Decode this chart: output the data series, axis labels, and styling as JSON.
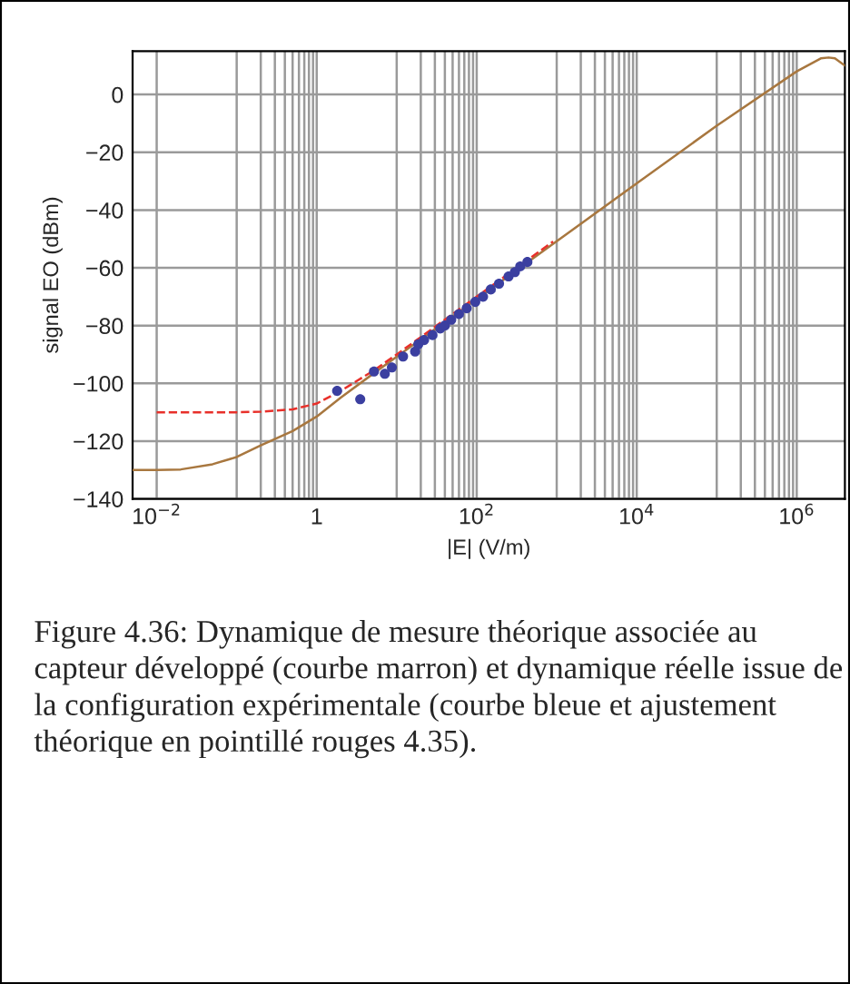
{
  "chart_data": {
    "type": "line",
    "xlabel": "|E| (V/m)",
    "ylabel": "signal EO (dBm)",
    "log": "x",
    "grid": true,
    "legend": false,
    "xlim": [
      0.005,
      4000000
    ],
    "ylim": [
      -140,
      15
    ],
    "xticks": [
      {
        "value": 0.01,
        "label": "10$^{−2}$"
      },
      {
        "value": 0.1,
        "label": null
      },
      1,
      {
        "value": 10,
        "label": null
      },
      {
        "value": 100,
        "label": "10$^{2}$"
      },
      {
        "value": 1000,
        "label": null
      },
      {
        "value": 10000,
        "label": "10$^{4}$"
      },
      {
        "value": 100000,
        "label": null
      },
      {
        "value": 1000000,
        "label": "10$^{6}$"
      },
      {
        "value": 0.2,
        "label": null
      },
      {
        "value": 0.3,
        "label": null
      },
      {
        "value": 0.4,
        "label": null
      },
      {
        "value": 0.5,
        "label": null
      },
      {
        "value": 0.6,
        "label": null
      },
      {
        "value": 0.7,
        "label": null
      },
      {
        "value": 0.8,
        "label": null
      },
      {
        "value": 0.9,
        "label": null
      },
      {
        "value": 20,
        "label": null
      },
      {
        "value": 30,
        "label": null
      },
      {
        "value": 40,
        "label": null
      },
      {
        "value": 50,
        "label": null
      },
      {
        "value": 60,
        "label": null
      },
      {
        "value": 70,
        "label": null
      },
      {
        "value": 80,
        "label": null
      },
      {
        "value": 90,
        "label": null
      },
      {
        "value": 2000,
        "label": null
      },
      {
        "value": 3000,
        "label": null
      },
      {
        "value": 4000,
        "label": null
      },
      {
        "value": 5000,
        "label": null
      },
      {
        "value": 6000,
        "label": null
      },
      {
        "value": 7000,
        "label": null
      },
      {
        "value": 8000,
        "label": null
      },
      {
        "value": 9000,
        "label": null
      },
      {
        "value": 200000,
        "label": null
      },
      {
        "value": 300000,
        "label": null
      },
      {
        "value": 400000,
        "label": null
      },
      {
        "value": 500000,
        "label": null
      },
      {
        "value": 600000,
        "label": null
      },
      {
        "value": 700000,
        "label": null
      },
      {
        "value": 800000,
        "label": null
      },
      {
        "value": 900000,
        "label": null
      }
    ],
    "yticks": [
      -140,
      -120,
      -100,
      -80,
      -60,
      -40,
      -20,
      0
    ],
    "series": [
      {
        "color": "#a8773f",
        "line_style": "solid",
        "marker": "none",
        "x": [
          0.005,
          0.01,
          0.02,
          0.05,
          0.1,
          0.2,
          0.5,
          1,
          2,
          5,
          10,
          100,
          1000,
          10000,
          100000,
          1000000,
          2000000,
          2500000,
          3000000,
          4000000
        ],
        "values": [
          -130,
          -130,
          -129.8,
          -128,
          -125.5,
          -121.5,
          -116.5,
          -111.5,
          -104.9,
          -96.8,
          -90.8,
          -70.8,
          -50.8,
          -30.8,
          -10.8,
          8,
          12.5,
          12.8,
          12.5,
          10
        ]
      },
      {
        "type": "line",
        "color": "#e8302a",
        "line_style": "dashed",
        "marker": "none",
        "x": [
          0.01,
          0.05,
          0.1,
          0.2,
          0.5,
          1,
          2,
          5,
          10,
          100,
          900
        ],
        "values": [
          -110,
          -110,
          -110,
          -109.8,
          -109,
          -107,
          -102.6,
          -95.8,
          -90,
          -70,
          -50.9
        ]
      },
      {
        "type": "scatter",
        "color": "#3b3fa0",
        "marker": "circle",
        "x": [
          1.8,
          3.5,
          5.2,
          7.1,
          8.7,
          12,
          17,
          18.6,
          22,
          28,
          35,
          40,
          48,
          60,
          75,
          96,
          120,
          150,
          190,
          250,
          300,
          350,
          430
        ],
        "values": [
          -102.6,
          -105.5,
          -95.9,
          -96.7,
          -94.5,
          -90.7,
          -89,
          -86.5,
          -85,
          -83.3,
          -81,
          -80,
          -78,
          -76,
          -74,
          -71.8,
          -70,
          -67.5,
          -65.5,
          -63,
          -61.5,
          -59.5,
          -58
        ]
      }
    ],
    "annotations": [
      "Figure 4.36: Dynamique de mesure théorique associée au capteur développé (courbe marron) et dynamique réelle issue de la configuration expérimentale (courbe bleue et ajustement théorique en pointillé rouges 4.35)."
    ]
  }
}
